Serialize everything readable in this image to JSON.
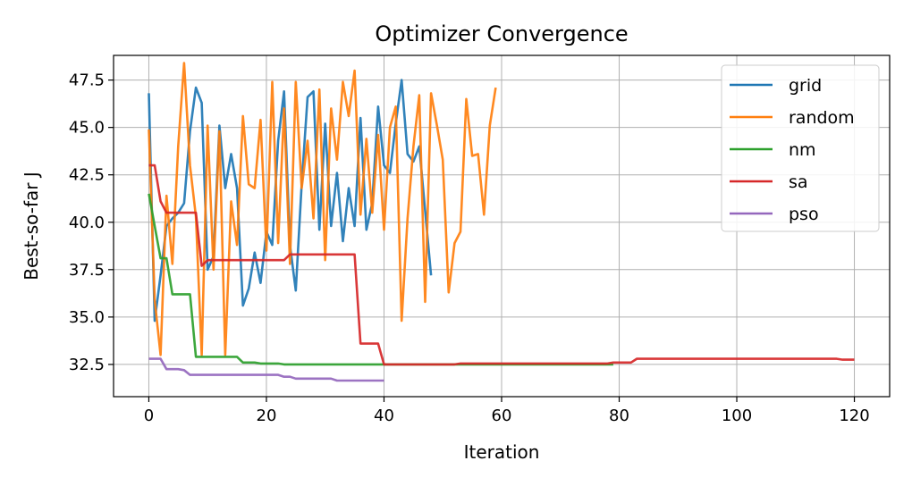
{
  "chart_data": {
    "type": "line",
    "title": "Optimizer Convergence",
    "xlabel": "Iteration",
    "ylabel": "Best-so-far J",
    "xlim": [
      -6,
      126
    ],
    "ylim": [
      30.8,
      48.8
    ],
    "xticks": [
      0,
      20,
      40,
      60,
      80,
      100,
      120
    ],
    "yticks": [
      32.5,
      35.0,
      37.5,
      40.0,
      42.5,
      45.0,
      47.5
    ],
    "xtick_labels": [
      "0",
      "20",
      "40",
      "60",
      "80",
      "100",
      "120"
    ],
    "ytick_labels": [
      "32.5",
      "35.0",
      "37.5",
      "40.0",
      "42.5",
      "45.0",
      "47.5"
    ],
    "grid": true,
    "legend_position": "top-right",
    "series": [
      {
        "name": "grid",
        "color": "#1f77b4",
        "x": [
          0,
          1,
          2,
          3,
          4,
          5,
          6,
          7,
          8,
          9,
          10,
          11,
          12,
          13,
          14,
          15,
          16,
          17,
          18,
          19,
          20,
          21,
          22,
          23,
          24,
          25,
          26,
          27,
          28,
          29,
          30,
          31,
          32,
          33,
          34,
          35,
          36,
          37,
          38,
          39,
          40,
          41,
          42,
          43,
          44,
          45,
          46,
          47,
          48
        ],
        "y": [
          46.8,
          34.8,
          37.2,
          39.8,
          40.2,
          40.5,
          41.0,
          44.8,
          47.1,
          46.3,
          37.5,
          38.2,
          45.1,
          41.8,
          43.6,
          41.8,
          35.6,
          36.5,
          38.4,
          36.8,
          39.5,
          38.8,
          44.3,
          46.9,
          38.8,
          36.4,
          42.0,
          46.6,
          46.9,
          39.6,
          45.2,
          39.8,
          42.6,
          39.0,
          41.8,
          39.8,
          45.5,
          39.6,
          41.0,
          46.1,
          43.0,
          42.6,
          45.2,
          47.5,
          43.6,
          43.2,
          44.0,
          40.6,
          37.2
        ]
      },
      {
        "name": "random",
        "color": "#ff7f0e",
        "x": [
          0,
          1,
          2,
          3,
          4,
          5,
          6,
          7,
          8,
          9,
          10,
          11,
          12,
          13,
          14,
          15,
          16,
          17,
          18,
          19,
          20,
          21,
          22,
          23,
          24,
          25,
          26,
          27,
          28,
          29,
          30,
          31,
          32,
          33,
          34,
          35,
          36,
          37,
          38,
          39,
          40,
          41,
          42,
          43,
          44,
          45,
          46,
          47,
          48,
          49,
          50,
          51,
          52,
          53,
          54,
          55,
          56,
          57,
          58,
          59
        ],
        "y": [
          44.9,
          35.9,
          33.0,
          41.4,
          37.8,
          44.0,
          48.4,
          43.0,
          40.3,
          33.0,
          45.1,
          37.5,
          44.8,
          33.0,
          41.1,
          38.8,
          45.6,
          42.0,
          41.8,
          45.4,
          38.5,
          47.4,
          38.9,
          46.0,
          37.8,
          47.4,
          41.8,
          44.3,
          40.2,
          47.0,
          38.0,
          46.0,
          43.3,
          47.4,
          45.6,
          48.0,
          40.4,
          44.4,
          40.5,
          44.6,
          39.6,
          45.0,
          46.1,
          34.8,
          40.2,
          44.0,
          46.7,
          35.8,
          46.8,
          45.1,
          43.3,
          36.3,
          38.9,
          39.5,
          46.5,
          43.5,
          43.6,
          40.4,
          45.1,
          47.1
        ]
      },
      {
        "name": "nm",
        "color": "#2ca02c",
        "x": [
          0,
          1,
          2,
          3,
          4,
          5,
          6,
          7,
          8,
          9,
          10,
          11,
          12,
          13,
          14,
          15,
          16,
          17,
          18,
          19,
          20,
          21,
          22,
          23,
          24,
          25,
          26,
          27,
          28,
          29,
          30,
          31,
          32,
          33,
          34,
          35,
          36,
          37,
          38,
          39,
          40,
          41,
          42,
          43,
          44,
          45,
          46,
          47,
          48,
          49,
          50,
          51,
          52,
          53,
          54,
          55,
          56,
          57,
          58,
          59,
          60,
          61,
          62,
          63,
          64,
          65,
          66,
          67,
          68,
          69,
          70,
          71,
          72,
          73,
          74,
          75,
          76,
          77,
          78,
          79
        ],
        "y": [
          41.5,
          39.8,
          38.1,
          38.1,
          36.2,
          36.2,
          36.2,
          36.2,
          32.9,
          32.9,
          32.9,
          32.9,
          32.9,
          32.9,
          32.9,
          32.9,
          32.6,
          32.6,
          32.6,
          32.55,
          32.55,
          32.55,
          32.55,
          32.5,
          32.5,
          32.5,
          32.5,
          32.5,
          32.5,
          32.5,
          32.5,
          32.5,
          32.5,
          32.5,
          32.5,
          32.5,
          32.5,
          32.5,
          32.5,
          32.5,
          32.5,
          32.5,
          32.5,
          32.5,
          32.5,
          32.5,
          32.5,
          32.5,
          32.5,
          32.5,
          32.5,
          32.5,
          32.5,
          32.5,
          32.5,
          32.5,
          32.5,
          32.5,
          32.5,
          32.5,
          32.5,
          32.5,
          32.5,
          32.5,
          32.5,
          32.5,
          32.5,
          32.5,
          32.5,
          32.5,
          32.5,
          32.5,
          32.5,
          32.5,
          32.5,
          32.5,
          32.5,
          32.5,
          32.5,
          32.5
        ]
      },
      {
        "name": "sa",
        "color": "#d62728",
        "x": [
          0,
          1,
          2,
          3,
          4,
          5,
          6,
          7,
          8,
          9,
          10,
          11,
          12,
          13,
          14,
          15,
          16,
          17,
          18,
          19,
          20,
          21,
          22,
          23,
          24,
          25,
          26,
          27,
          28,
          29,
          30,
          31,
          32,
          33,
          34,
          35,
          36,
          37,
          38,
          39,
          40,
          41,
          42,
          43,
          44,
          45,
          46,
          47,
          48,
          49,
          50,
          51,
          52,
          53,
          54,
          55,
          56,
          57,
          58,
          59,
          60,
          61,
          62,
          63,
          64,
          65,
          66,
          67,
          68,
          69,
          70,
          71,
          72,
          73,
          74,
          75,
          76,
          77,
          78,
          79,
          80,
          81,
          82,
          83,
          84,
          85,
          86,
          87,
          88,
          89,
          90,
          91,
          92,
          93,
          94,
          95,
          96,
          97,
          98,
          99,
          100,
          101,
          102,
          103,
          104,
          105,
          106,
          107,
          108,
          109,
          110,
          111,
          112,
          113,
          114,
          115,
          116,
          117,
          118,
          119,
          120
        ],
        "y": [
          43.0,
          43.0,
          41.1,
          40.5,
          40.5,
          40.5,
          40.5,
          40.5,
          40.5,
          37.7,
          38.0,
          38.0,
          38.0,
          38.0,
          38.0,
          38.0,
          38.0,
          38.0,
          38.0,
          38.0,
          38.0,
          38.0,
          38.0,
          38.0,
          38.3,
          38.3,
          38.3,
          38.3,
          38.3,
          38.3,
          38.3,
          38.3,
          38.3,
          38.3,
          38.3,
          38.3,
          33.6,
          33.6,
          33.6,
          33.6,
          32.5,
          32.5,
          32.5,
          32.5,
          32.5,
          32.5,
          32.5,
          32.5,
          32.5,
          32.5,
          32.5,
          32.5,
          32.5,
          32.55,
          32.55,
          32.55,
          32.55,
          32.55,
          32.55,
          32.55,
          32.55,
          32.55,
          32.55,
          32.55,
          32.55,
          32.55,
          32.55,
          32.55,
          32.55,
          32.55,
          32.55,
          32.55,
          32.55,
          32.55,
          32.55,
          32.55,
          32.55,
          32.55,
          32.55,
          32.6,
          32.6,
          32.6,
          32.6,
          32.8,
          32.8,
          32.8,
          32.8,
          32.8,
          32.8,
          32.8,
          32.8,
          32.8,
          32.8,
          32.8,
          32.8,
          32.8,
          32.8,
          32.8,
          32.8,
          32.8,
          32.8,
          32.8,
          32.8,
          32.8,
          32.8,
          32.8,
          32.8,
          32.8,
          32.8,
          32.8,
          32.8,
          32.8,
          32.8,
          32.8,
          32.8,
          32.8,
          32.8,
          32.8,
          32.75,
          32.75,
          32.75
        ]
      },
      {
        "name": "pso",
        "color": "#9467bd",
        "x": [
          0,
          1,
          2,
          3,
          4,
          5,
          6,
          7,
          8,
          9,
          10,
          11,
          12,
          13,
          14,
          15,
          16,
          17,
          18,
          19,
          20,
          21,
          22,
          23,
          24,
          25,
          26,
          27,
          28,
          29,
          30,
          31,
          32,
          33,
          34,
          35,
          36,
          37,
          38,
          39,
          40
        ],
        "y": [
          32.8,
          32.8,
          32.8,
          32.25,
          32.25,
          32.25,
          32.2,
          31.95,
          31.95,
          31.95,
          31.95,
          31.95,
          31.95,
          31.95,
          31.95,
          31.95,
          31.95,
          31.95,
          31.95,
          31.95,
          31.95,
          31.95,
          31.95,
          31.85,
          31.85,
          31.75,
          31.75,
          31.75,
          31.75,
          31.75,
          31.75,
          31.75,
          31.65,
          31.65,
          31.65,
          31.65,
          31.65,
          31.65,
          31.65,
          31.65,
          31.65
        ]
      }
    ]
  }
}
